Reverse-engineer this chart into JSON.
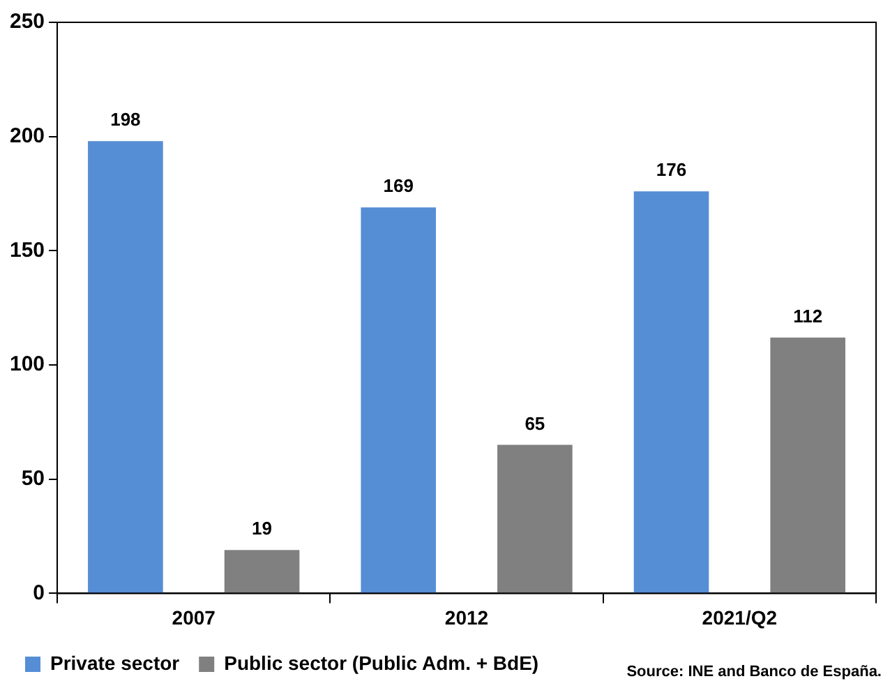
{
  "chart_data": {
    "type": "bar",
    "categories": [
      "2007",
      "2012",
      "2021/Q2"
    ],
    "series": [
      {
        "name": "Private sector",
        "color": "#558ed5",
        "values": [
          198,
          169,
          176
        ]
      },
      {
        "name": "Public sector (Public Adm. + BdE)",
        "color": "#808080",
        "values": [
          19,
          65,
          112
        ]
      }
    ],
    "ylim": [
      0,
      250
    ],
    "yticks": [
      0,
      50,
      100,
      150,
      200,
      250
    ],
    "grid": false,
    "legend": "bottom left",
    "data_labels": true,
    "annotations": [
      "Source: INE and Banco de España."
    ]
  }
}
